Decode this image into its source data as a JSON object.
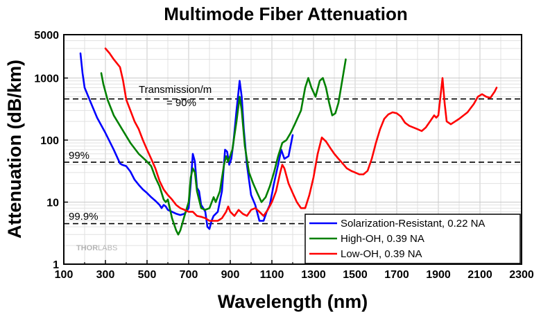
{
  "chart_data": {
    "type": "line",
    "title": "Multimode Fiber Attenuation",
    "xlabel": "Wavelength (nm)",
    "ylabel": "Attenuation (dB/km)",
    "xlim": [
      100,
      2300
    ],
    "ylim": [
      1,
      5000
    ],
    "y_scale": "log",
    "grid": true,
    "x_ticks": [
      "100",
      "300",
      "500",
      "700",
      "900",
      "1100",
      "1300",
      "1500",
      "1700",
      "1900",
      "2100",
      "2300"
    ],
    "y_ticks": [
      {
        "value": 1,
        "label": "1"
      },
      {
        "value": 10,
        "label": "10"
      },
      {
        "value": 100,
        "label": "100"
      },
      {
        "value": 1000,
        "label": "1000"
      },
      {
        "value": 5000,
        "label": "5000"
      }
    ],
    "legend_position": "bottom-right",
    "reference_lines": [
      {
        "y": 460,
        "label_lines": [
          "Transmission/m",
          "= 90%"
        ]
      },
      {
        "y": 44,
        "label_lines": [
          "99%"
        ]
      },
      {
        "y": 4.5,
        "label_lines": [
          "99.9%"
        ]
      }
    ],
    "series": [
      {
        "name": "Solarization-Resistant, 0.22 NA",
        "color": "#0000ff",
        "points": [
          [
            180,
            2500
          ],
          [
            190,
            1200
          ],
          [
            200,
            700
          ],
          [
            230,
            400
          ],
          [
            260,
            230
          ],
          [
            300,
            130
          ],
          [
            340,
            70
          ],
          [
            370,
            42
          ],
          [
            380,
            40
          ],
          [
            400,
            38
          ],
          [
            420,
            31
          ],
          [
            440,
            23
          ],
          [
            460,
            19
          ],
          [
            480,
            16
          ],
          [
            500,
            14
          ],
          [
            520,
            12
          ],
          [
            540,
            10.5
          ],
          [
            560,
            9
          ],
          [
            570,
            8
          ],
          [
            580,
            9
          ],
          [
            590,
            8.5
          ],
          [
            600,
            7.5
          ],
          [
            620,
            7
          ],
          [
            640,
            6.5
          ],
          [
            660,
            6.2
          ],
          [
            680,
            6.5
          ],
          [
            700,
            8
          ],
          [
            710,
            20
          ],
          [
            720,
            60
          ],
          [
            730,
            45
          ],
          [
            740,
            17
          ],
          [
            750,
            15
          ],
          [
            760,
            9
          ],
          [
            770,
            8
          ],
          [
            780,
            7
          ],
          [
            790,
            4
          ],
          [
            800,
            3.7
          ],
          [
            810,
            5
          ],
          [
            820,
            6
          ],
          [
            840,
            7
          ],
          [
            860,
            15
          ],
          [
            875,
            70
          ],
          [
            885,
            65
          ],
          [
            895,
            40
          ],
          [
            905,
            50
          ],
          [
            915,
            90
          ],
          [
            930,
            300
          ],
          [
            945,
            900
          ],
          [
            955,
            500
          ],
          [
            965,
            150
          ],
          [
            980,
            40
          ],
          [
            1000,
            13
          ],
          [
            1020,
            9
          ],
          [
            1040,
            5
          ],
          [
            1060,
            5
          ],
          [
            1075,
            7
          ],
          [
            1090,
            9
          ],
          [
            1110,
            20
          ],
          [
            1130,
            40
          ],
          [
            1145,
            70
          ],
          [
            1160,
            50
          ],
          [
            1180,
            55
          ],
          [
            1200,
            120
          ]
        ]
      },
      {
        "name": "High-OH, 0.39 NA",
        "color": "#008000",
        "points": [
          [
            280,
            1200
          ],
          [
            290,
            800
          ],
          [
            310,
            450
          ],
          [
            340,
            250
          ],
          [
            380,
            150
          ],
          [
            420,
            90
          ],
          [
            460,
            60
          ],
          [
            480,
            52
          ],
          [
            500,
            45
          ],
          [
            520,
            38
          ],
          [
            540,
            25
          ],
          [
            560,
            18
          ],
          [
            580,
            11
          ],
          [
            590,
            10
          ],
          [
            600,
            11
          ],
          [
            620,
            5.5
          ],
          [
            640,
            3.5
          ],
          [
            650,
            3
          ],
          [
            660,
            3.5
          ],
          [
            680,
            6
          ],
          [
            700,
            10
          ],
          [
            710,
            25
          ],
          [
            720,
            35
          ],
          [
            730,
            30
          ],
          [
            740,
            15
          ],
          [
            760,
            8
          ],
          [
            780,
            7.5
          ],
          [
            800,
            8
          ],
          [
            820,
            12
          ],
          [
            830,
            10
          ],
          [
            850,
            15
          ],
          [
            870,
            40
          ],
          [
            880,
            55
          ],
          [
            890,
            45
          ],
          [
            910,
            70
          ],
          [
            930,
            200
          ],
          [
            945,
            500
          ],
          [
            955,
            300
          ],
          [
            970,
            80
          ],
          [
            990,
            30
          ],
          [
            1010,
            20
          ],
          [
            1030,
            14
          ],
          [
            1050,
            10
          ],
          [
            1070,
            12
          ],
          [
            1090,
            18
          ],
          [
            1110,
            30
          ],
          [
            1130,
            55
          ],
          [
            1150,
            90
          ],
          [
            1170,
            100
          ],
          [
            1190,
            130
          ],
          [
            1210,
            180
          ],
          [
            1240,
            300
          ],
          [
            1260,
            700
          ],
          [
            1275,
            1000
          ],
          [
            1290,
            700
          ],
          [
            1310,
            500
          ],
          [
            1330,
            900
          ],
          [
            1345,
            1000
          ],
          [
            1360,
            700
          ],
          [
            1375,
            400
          ],
          [
            1390,
            250
          ],
          [
            1405,
            270
          ],
          [
            1420,
            400
          ],
          [
            1440,
            1000
          ],
          [
            1455,
            2000
          ]
        ]
      },
      {
        "name": "Low-OH, 0.39 NA",
        "color": "#ff0000",
        "points": [
          [
            300,
            3000
          ],
          [
            320,
            2500
          ],
          [
            340,
            2000
          ],
          [
            370,
            1500
          ],
          [
            385,
            900
          ],
          [
            400,
            450
          ],
          [
            420,
            300
          ],
          [
            440,
            200
          ],
          [
            460,
            150
          ],
          [
            480,
            100
          ],
          [
            500,
            70
          ],
          [
            520,
            50
          ],
          [
            540,
            35
          ],
          [
            560,
            22
          ],
          [
            580,
            16
          ],
          [
            600,
            13
          ],
          [
            620,
            11
          ],
          [
            640,
            9
          ],
          [
            660,
            8
          ],
          [
            680,
            7.5
          ],
          [
            700,
            7
          ],
          [
            720,
            7
          ],
          [
            740,
            6
          ],
          [
            760,
            5.8
          ],
          [
            780,
            5.5
          ],
          [
            800,
            5
          ],
          [
            820,
            5
          ],
          [
            840,
            5
          ],
          [
            860,
            5.5
          ],
          [
            880,
            7
          ],
          [
            890,
            8.5
          ],
          [
            900,
            7
          ],
          [
            920,
            6
          ],
          [
            940,
            7.5
          ],
          [
            960,
            6.5
          ],
          [
            980,
            6
          ],
          [
            1000,
            7.5
          ],
          [
            1020,
            8
          ],
          [
            1040,
            7
          ],
          [
            1060,
            6
          ],
          [
            1080,
            7.5
          ],
          [
            1100,
            10
          ],
          [
            1120,
            15
          ],
          [
            1140,
            30
          ],
          [
            1150,
            40
          ],
          [
            1160,
            35
          ],
          [
            1180,
            20
          ],
          [
            1200,
            14
          ],
          [
            1220,
            10
          ],
          [
            1240,
            8
          ],
          [
            1260,
            8
          ],
          [
            1280,
            13
          ],
          [
            1300,
            25
          ],
          [
            1320,
            60
          ],
          [
            1340,
            110
          ],
          [
            1360,
            95
          ],
          [
            1380,
            75
          ],
          [
            1400,
            60
          ],
          [
            1420,
            50
          ],
          [
            1440,
            42
          ],
          [
            1460,
            35
          ],
          [
            1480,
            32
          ],
          [
            1500,
            30
          ],
          [
            1520,
            28
          ],
          [
            1540,
            28
          ],
          [
            1560,
            32
          ],
          [
            1580,
            50
          ],
          [
            1600,
            90
          ],
          [
            1620,
            150
          ],
          [
            1640,
            220
          ],
          [
            1660,
            260
          ],
          [
            1680,
            280
          ],
          [
            1700,
            270
          ],
          [
            1720,
            240
          ],
          [
            1740,
            190
          ],
          [
            1760,
            170
          ],
          [
            1800,
            150
          ],
          [
            1820,
            140
          ],
          [
            1840,
            160
          ],
          [
            1860,
            200
          ],
          [
            1880,
            250
          ],
          [
            1890,
            230
          ],
          [
            1900,
            250
          ],
          [
            1910,
            500
          ],
          [
            1920,
            1000
          ],
          [
            1930,
            400
          ],
          [
            1940,
            200
          ],
          [
            1960,
            180
          ],
          [
            2000,
            220
          ],
          [
            2040,
            280
          ],
          [
            2070,
            380
          ],
          [
            2090,
            500
          ],
          [
            2110,
            550
          ],
          [
            2130,
            500
          ],
          [
            2150,
            480
          ],
          [
            2170,
            600
          ],
          [
            2180,
            700
          ]
        ]
      }
    ]
  },
  "watermark": {
    "part1": "THOR",
    "part2": "LABS"
  }
}
